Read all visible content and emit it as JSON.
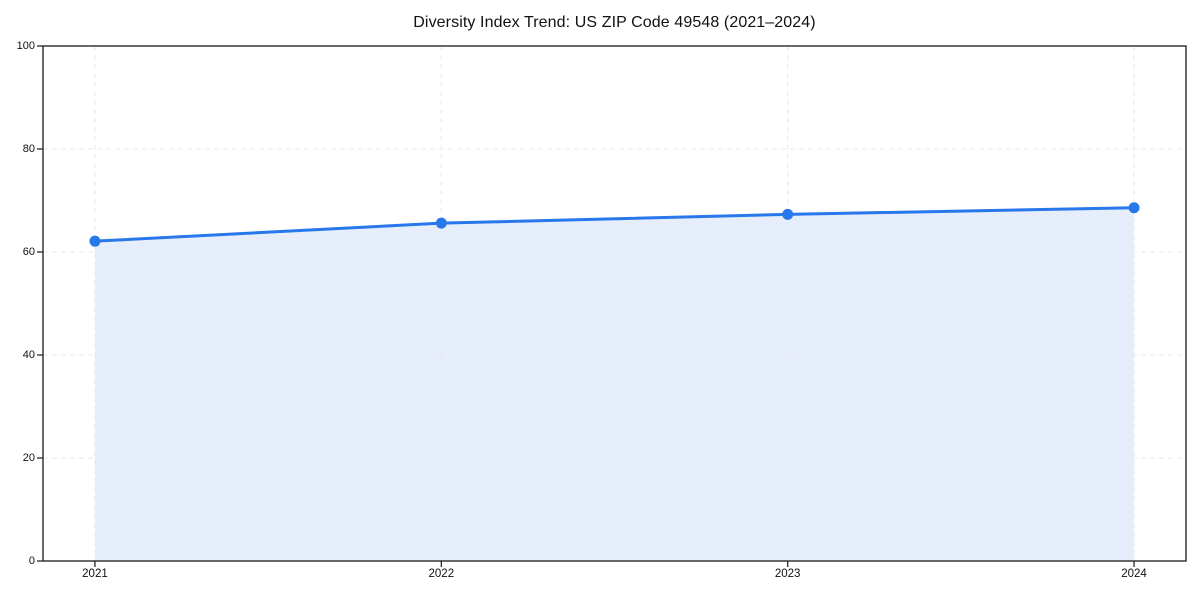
{
  "chart_data": {
    "type": "area",
    "title": "Diversity Index Trend: US ZIP Code 49548 (2021–2024)",
    "x": [
      2021,
      2022,
      2023,
      2024
    ],
    "x_tick_labels": [
      "2021",
      "2022",
      "2023",
      "2024"
    ],
    "series": [
      {
        "name": "Diversity Index",
        "values": [
          62.1,
          65.6,
          67.3,
          68.6
        ]
      }
    ],
    "xlabel": "",
    "ylabel": "",
    "xlim": [
      2020.85,
      2024.15
    ],
    "ylim": [
      0,
      100
    ],
    "yticks": [
      0,
      20,
      40,
      60,
      80,
      100
    ],
    "grid": {
      "visible": true,
      "style": "dashed",
      "axes": "both"
    },
    "legend": {
      "visible": false
    },
    "marker": "circle",
    "colors": {
      "line": "#2878eb",
      "marker": "#2878eb",
      "fill": "#e6eefc",
      "grid": "#e8e8e8",
      "axis": "#1a1a1a",
      "text": "#111111",
      "background": "#ffffff"
    }
  }
}
